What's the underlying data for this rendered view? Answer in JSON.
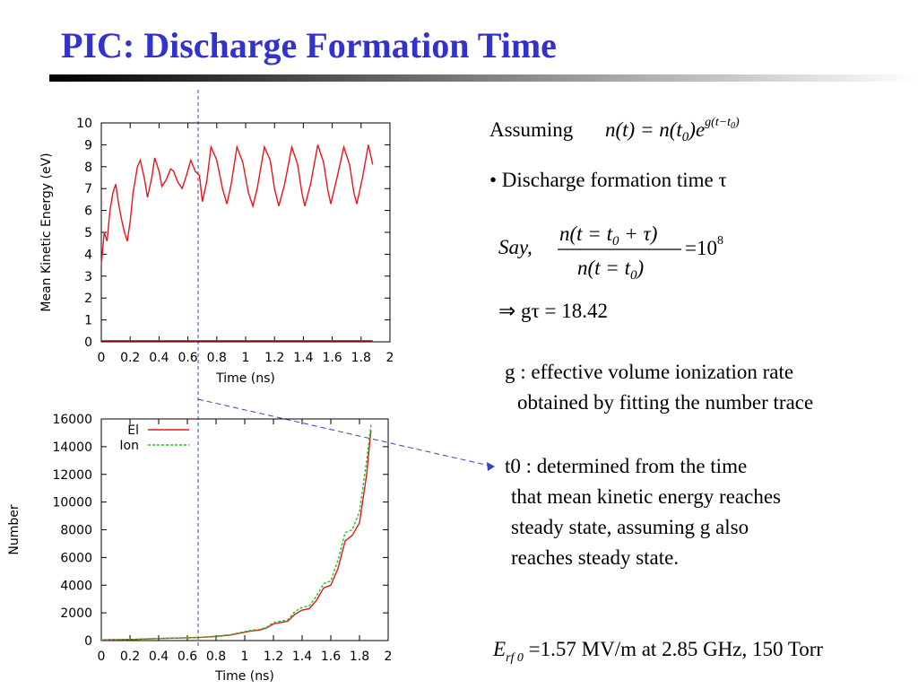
{
  "slide": {
    "title": "PIC: Discharge Formation Time",
    "assuming": "Assuming",
    "eq1": {
      "lhs": "n(t) = n(t",
      "sub": "0",
      "rhs": ")e",
      "exp": "g(t−t",
      "exp_sub": "0",
      "exp_end": ")"
    },
    "bullet": "• Discharge formation time τ",
    "eq2": {
      "say": "Say,",
      "num": "n(t = t",
      "num_sub": "0",
      "num_end": " + τ)",
      "den": "n(t = t",
      "den_sub": "0",
      "den_end": ")",
      "rhs": "=10",
      "rhs_sup": "8"
    },
    "eq3": "⇒  gτ = 18.42",
    "g_note": [
      "g : effective volume ionization rate",
      "obtained by fitting the number trace"
    ],
    "t0_note": [
      "t0 : determined from the time",
      "that mean kinetic energy reaches",
      "steady state, assuming g also",
      "reaches steady state."
    ],
    "eq4": {
      "e": "E",
      "sub": "rf 0",
      "rest": " =1.57 MV/m  at  2.85 GHz,  150 Torr"
    }
  },
  "chart_data": [
    {
      "type": "line",
      "xlabel": "Time (ns)",
      "ylabel": "Mean Kinetic Energy (eV)",
      "xlim": [
        0,
        2
      ],
      "xticks": [
        0,
        0.2,
        0.4,
        0.6,
        0.8,
        1,
        1.2,
        1.4,
        1.6,
        1.8,
        2
      ],
      "ylim": [
        0,
        10
      ],
      "yticks": [
        0,
        1,
        2,
        3,
        4,
        5,
        6,
        7,
        8,
        9,
        10
      ],
      "x": [
        0,
        0.02,
        0.04,
        0.06,
        0.08,
        0.1,
        0.12,
        0.14,
        0.16,
        0.18,
        0.2,
        0.22,
        0.25,
        0.27,
        0.3,
        0.32,
        0.35,
        0.37,
        0.4,
        0.42,
        0.45,
        0.48,
        0.5,
        0.53,
        0.56,
        0.59,
        0.62,
        0.65,
        0.68,
        0.7,
        0.73,
        0.76,
        0.8,
        0.84,
        0.87,
        0.9,
        0.94,
        0.98,
        1.02,
        1.05,
        1.08,
        1.13,
        1.17,
        1.2,
        1.23,
        1.27,
        1.32,
        1.36,
        1.39,
        1.41,
        1.45,
        1.5,
        1.54,
        1.57,
        1.59,
        1.63,
        1.68,
        1.72,
        1.75,
        1.77,
        1.81,
        1.85,
        1.88
      ],
      "series": [
        {
          "color": "#e8151b",
          "values": [
            3.5,
            5.0,
            4.6,
            6.0,
            6.8,
            7.2,
            6.3,
            5.6,
            5.0,
            4.6,
            5.5,
            6.8,
            8.0,
            8.3,
            7.4,
            6.6,
            7.5,
            8.4,
            7.8,
            7.1,
            7.4,
            7.9,
            7.8,
            7.3,
            7.0,
            7.6,
            8.3,
            7.8,
            7.6,
            6.4,
            7.3,
            8.9,
            8.3,
            7.0,
            6.3,
            7.2,
            8.9,
            8.2,
            6.8,
            6.2,
            7.0,
            8.9,
            8.3,
            7.0,
            6.2,
            7.2,
            8.9,
            8.1,
            6.8,
            6.2,
            7.2,
            9.0,
            8.2,
            6.9,
            6.3,
            7.4,
            8.9,
            8.1,
            6.8,
            6.3,
            7.5,
            9.0,
            8.1
          ]
        },
        {
          "color": "#e8151b",
          "values": [
            0.05,
            0.05,
            0.05,
            0.05,
            0.05,
            0.05,
            0.05,
            0.05,
            0.05,
            0.05,
            0.05,
            0.05,
            0.05,
            0.05,
            0.05,
            0.05,
            0.05,
            0.05,
            0.05,
            0.05,
            0.05,
            0.05,
            0.05,
            0.05,
            0.05,
            0.05,
            0.05,
            0.05,
            0.05,
            0.05,
            0.05,
            0.05,
            0.05,
            0.05,
            0.05,
            0.05,
            0.05,
            0.05,
            0.05,
            0.05,
            0.05,
            0.05,
            0.05,
            0.05,
            0.05,
            0.05,
            0.05,
            0.05,
            0.05,
            0.05,
            0.05,
            0.05,
            0.05,
            0.05,
            0.05,
            0.05,
            0.05,
            0.05,
            0.05,
            0.05,
            0.05,
            0.05,
            0.05
          ]
        }
      ]
    },
    {
      "type": "line",
      "xlabel": "Time (ns)",
      "ylabel": "Number",
      "legend": "upper left",
      "xlim": [
        0,
        2
      ],
      "xticks": [
        0,
        0.2,
        0.4,
        0.6,
        0.8,
        1,
        1.2,
        1.4,
        1.6,
        1.8,
        2
      ],
      "ylim": [
        0,
        16000
      ],
      "yticks": [
        0,
        2000,
        4000,
        6000,
        8000,
        10000,
        12000,
        14000,
        16000
      ],
      "x": [
        0,
        0.2,
        0.4,
        0.6,
        0.7,
        0.8,
        0.9,
        1.0,
        1.05,
        1.1,
        1.15,
        1.2,
        1.25,
        1.3,
        1.35,
        1.4,
        1.45,
        1.5,
        1.55,
        1.6,
        1.65,
        1.7,
        1.75,
        1.8,
        1.85,
        1.88
      ],
      "series": [
        {
          "name": "El",
          "color": "#e8151b",
          "style": "solid",
          "values": [
            50,
            80,
            150,
            200,
            230,
            300,
            400,
            600,
            700,
            750,
            900,
            1200,
            1300,
            1400,
            1900,
            2200,
            2300,
            2900,
            3800,
            4000,
            5200,
            7200,
            7600,
            8500,
            12000,
            15200
          ]
        },
        {
          "name": "Ion",
          "color": "#1ec81e",
          "style": "dashed",
          "values": [
            50,
            80,
            150,
            200,
            240,
            320,
            430,
            650,
            750,
            800,
            950,
            1300,
            1400,
            1500,
            2100,
            2400,
            2500,
            3200,
            4100,
            4300,
            5800,
            7800,
            8000,
            9300,
            13000,
            15600
          ]
        }
      ]
    }
  ]
}
